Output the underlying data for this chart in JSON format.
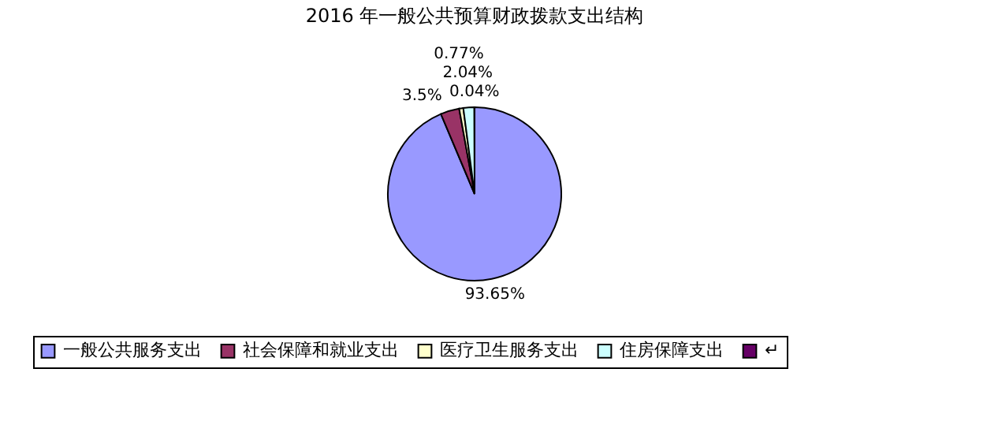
{
  "chart_data": {
    "type": "pie",
    "title": "2016 年一般公共预算财政拨款支出结构",
    "categories": [
      "一般公共服务支出",
      "社会保障和就业支出",
      "医疗卫生服务支出",
      "住房保障支出",
      "↵"
    ],
    "values": [
      93.65,
      3.5,
      0.77,
      2.04,
      0.04
    ],
    "colors": [
      "#9999ff",
      "#993366",
      "#ffffcc",
      "#ccffff",
      "#660066"
    ],
    "value_labels": [
      "93.65%",
      "3.5%",
      "0.77%",
      "2.04%",
      "0.04%"
    ],
    "legend": "bottom"
  }
}
